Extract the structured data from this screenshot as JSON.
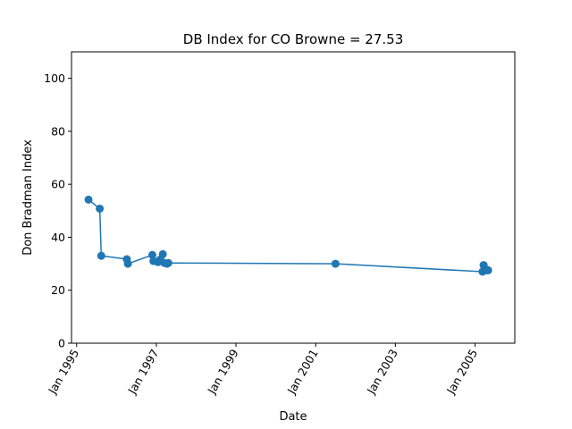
{
  "chart_data": {
    "type": "line",
    "title": "DB Index for CO Browne = 27.53",
    "xlabel": "Date",
    "ylabel": "Don Bradman Index",
    "ylim": [
      0,
      110
    ],
    "xlim": [
      "1994-11-15",
      "2005-12-31"
    ],
    "yticks": [
      0,
      20,
      40,
      60,
      80,
      100
    ],
    "xticks": [
      {
        "date": "1995-01-01",
        "label": "Jan 1995"
      },
      {
        "date": "1997-01-01",
        "label": "Jan 1997"
      },
      {
        "date": "1999-01-01",
        "label": "Jan 1999"
      },
      {
        "date": "2001-01-01",
        "label": "Jan 2001"
      },
      {
        "date": "2003-01-01",
        "label": "Jan 2003"
      },
      {
        "date": "2005-01-01",
        "label": "Jan 2005"
      }
    ],
    "grid": false,
    "color": "#1f77b4",
    "series": [
      {
        "points": [
          {
            "x": "1995-04-20",
            "y": 54.2
          },
          {
            "x": "1995-08-01",
            "y": 50.8
          },
          {
            "x": "1995-08-15",
            "y": 33.0
          },
          {
            "x": "1996-04-05",
            "y": 31.7
          },
          {
            "x": "1996-04-15",
            "y": 30.0
          },
          {
            "x": "1996-11-25",
            "y": 33.3
          },
          {
            "x": "1996-12-05",
            "y": 31.0
          },
          {
            "x": "1997-01-15",
            "y": 30.6
          },
          {
            "x": "1997-02-01",
            "y": 31.5
          },
          {
            "x": "1997-03-01",
            "y": 33.6
          },
          {
            "x": "1997-03-15",
            "y": 30.3
          },
          {
            "x": "1997-04-10",
            "y": 30.0
          },
          {
            "x": "1997-04-20",
            "y": 30.3
          },
          {
            "x": "2001-07-01",
            "y": 30.0
          },
          {
            "x": "2005-03-10",
            "y": 27.0
          },
          {
            "x": "2005-03-20",
            "y": 29.5
          },
          {
            "x": "2005-04-05",
            "y": 28.0
          },
          {
            "x": "2005-04-20",
            "y": 27.5
          },
          {
            "x": "2005-05-01",
            "y": 27.53
          }
        ]
      }
    ]
  }
}
